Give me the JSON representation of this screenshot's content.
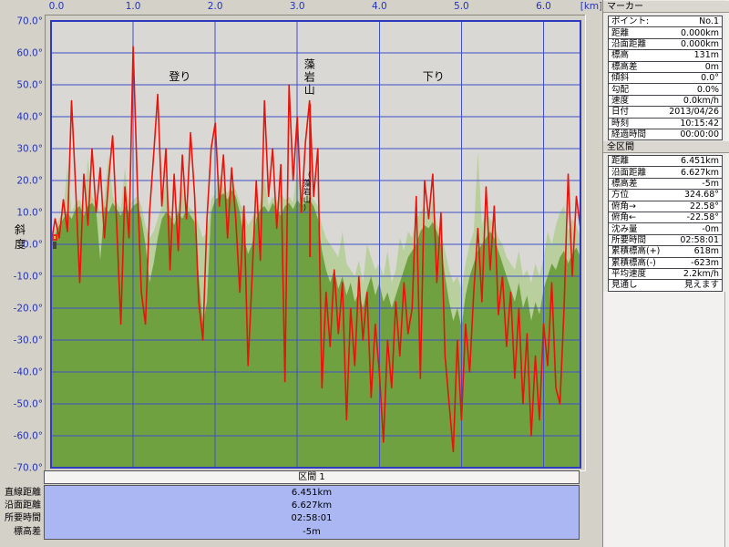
{
  "window": {
    "bg": "#D4D1C9"
  },
  "chart": {
    "plot_bg": "#D9D8D4",
    "grid_color": "#4050C8",
    "border_color": "#2E3ABF",
    "tick_color": "#2433BE",
    "x_ticks": [
      "0.0",
      "1.0",
      "2.0",
      "3.0",
      "4.0",
      "5.0",
      "6.0"
    ],
    "x_tick_km": [
      0,
      1,
      2,
      3,
      4,
      5,
      6
    ],
    "x_unit": "[km]",
    "y_ticks": [
      "70.0°",
      "60.0°",
      "50.0°",
      "40.0°",
      "30.0°",
      "20.0°",
      "10.0°",
      "0.0°",
      "-10.0°",
      "-20.0°",
      "-30.0°",
      "-40.0°",
      "-50.0°",
      "-60.0°",
      "-70.0°"
    ],
    "y_tick_deg": [
      70,
      60,
      50,
      40,
      30,
      20,
      10,
      0,
      -10,
      -20,
      -30,
      -40,
      -50,
      -60,
      -70
    ],
    "y_title": "斜度",
    "annotations": [
      {
        "text": "登り",
        "km": 1.57,
        "deg": 51.5,
        "type": "h"
      },
      {
        "text": "下り",
        "km": 4.66,
        "deg": 51.5,
        "type": "h"
      },
      {
        "text": "藻岩山",
        "km": 3.15,
        "deg": 56.5,
        "type": "v"
      },
      {
        "text": "（藻岩山）",
        "km": 3.12,
        "deg": 22.0,
        "type": "vs"
      }
    ],
    "marker_line": {
      "km": 3.155,
      "deg_from": 44,
      "deg_to": -4,
      "color": "#E8140C"
    },
    "start_marker": {
      "km": 0,
      "deg": 0,
      "colors": [
        "#D93020",
        "#E8C820",
        "#4A453E"
      ]
    }
  },
  "chart_data": {
    "type": "area+line",
    "x_label": "[km]",
    "y_label": "斜度",
    "x_range_km": [
      0,
      6.45
    ],
    "y_range_deg": [
      -70,
      70
    ],
    "x_step_km": 0.05,
    "grid": {
      "x_interval_km": 1,
      "y_interval_deg": 10
    },
    "series": [
      {
        "name": "slope-red-line",
        "color": "#E8140C",
        "values": [
          0,
          8,
          2,
          14,
          4,
          45,
          18,
          -12,
          22,
          6,
          30,
          10,
          24,
          2,
          20,
          34,
          6,
          -25,
          18,
          2,
          62,
          20,
          -15,
          -25,
          10,
          28,
          47,
          12,
          30,
          -8,
          22,
          -2,
          28,
          8,
          35,
          15,
          -18,
          -30,
          8,
          30,
          38,
          12,
          28,
          2,
          24,
          8,
          -15,
          12,
          -38,
          -10,
          20,
          -5,
          45,
          15,
          30,
          5,
          25,
          -43,
          50,
          20,
          40,
          10,
          32,
          45,
          15,
          30,
          -45,
          -15,
          -32,
          -8,
          -28,
          -12,
          -55,
          -20,
          -38,
          -10,
          -30,
          -15,
          -48,
          -25,
          -40,
          -62,
          -30,
          -45,
          -18,
          -35,
          -12,
          -28,
          -20,
          15,
          -42,
          20,
          8,
          22,
          -12,
          10,
          -35,
          -50,
          -65,
          -30,
          -55,
          -25,
          -40,
          -15,
          5,
          -18,
          18,
          -8,
          12,
          -22,
          -10,
          -32,
          -15,
          -42,
          -20,
          -50,
          -28,
          -60,
          -35,
          -55,
          -25,
          -38,
          -12,
          -45,
          -50,
          -20,
          22,
          -10,
          15,
          5
        ]
      },
      {
        "name": "elevation-profile-light-green",
        "color": "#B9D09E",
        "values": [
          2,
          5,
          8,
          10,
          25,
          10,
          13,
          14,
          11,
          27,
          15,
          13,
          10,
          14,
          28,
          15,
          13,
          11,
          24,
          12,
          14,
          15,
          12,
          6,
          2,
          4,
          8,
          12,
          20,
          11,
          8,
          12,
          18,
          13,
          11,
          10,
          6,
          2,
          4,
          14,
          16,
          22,
          18,
          16,
          19,
          17,
          13,
          10,
          6,
          8,
          11,
          13,
          21,
          12,
          15,
          13,
          16,
          14,
          15,
          13,
          24,
          14,
          15,
          16,
          14,
          12,
          6,
          2,
          0,
          -2,
          -4,
          4,
          -6,
          -8,
          -10,
          -5,
          -12,
          0,
          -4,
          -8,
          -6,
          -10,
          -2,
          -12,
          -8,
          2,
          -2,
          4,
          2,
          8,
          10,
          12,
          7,
          14,
          6,
          4,
          -2,
          -8,
          -12,
          -10,
          -14,
          -6,
          0,
          4,
          29,
          6,
          10,
          8,
          6,
          2,
          0,
          -4,
          -6,
          -8,
          -2,
          -10,
          -8,
          -12,
          -6,
          -10,
          -4,
          4,
          0,
          6,
          10,
          12,
          4,
          8,
          6,
          2
        ]
      },
      {
        "name": "elevation-profile-olive-area",
        "color": "#70A140",
        "values": [
          0,
          3,
          6,
          8,
          10,
          8,
          11,
          12,
          9,
          12,
          13,
          11,
          -5,
          12,
          10,
          13,
          11,
          9,
          12,
          10,
          12,
          13,
          8,
          0,
          -12,
          -6,
          2,
          8,
          10,
          9,
          6,
          10,
          8,
          11,
          9,
          7,
          -10,
          -25,
          -18,
          10,
          14,
          15,
          16,
          14,
          17,
          15,
          10,
          2,
          -3,
          0,
          8,
          11,
          12,
          10,
          13,
          11,
          9,
          12,
          13,
          11,
          14,
          12,
          13,
          14,
          12,
          8,
          -2,
          -8,
          -12,
          -8,
          -14,
          -10,
          -16,
          -12,
          -18,
          -15,
          -20,
          -14,
          -10,
          -16,
          -12,
          -18,
          -15,
          -20,
          -16,
          -12,
          -8,
          -4,
          -2,
          0,
          4,
          6,
          5,
          7,
          4,
          0,
          -10,
          -18,
          -24,
          -20,
          -26,
          -16,
          -10,
          -6,
          -2,
          0,
          2,
          4,
          2,
          -2,
          -6,
          -10,
          -14,
          -18,
          -12,
          -20,
          -16,
          -24,
          -18,
          -22,
          -14,
          -10,
          -6,
          -8,
          -4,
          -2,
          -6,
          -3,
          -1,
          -4
        ]
      }
    ]
  },
  "section_panel": {
    "header": "区間 1",
    "body_bg": "#ABB7F3",
    "rows": [
      {
        "label": "直線距離",
        "value": "6.451km"
      },
      {
        "label": "沿面距離",
        "value": "6.627km"
      },
      {
        "label": "所要時間",
        "value": "02:58:01"
      },
      {
        "label": "標高差",
        "value": "-5m"
      }
    ]
  },
  "marker_panel": {
    "title": "マーカー",
    "rows": [
      [
        "ポイント:",
        "No.1"
      ],
      [
        "距離",
        "0.000km"
      ],
      [
        "沿面距離",
        "0.000km"
      ],
      [
        "標高",
        "131m"
      ],
      [
        "標高差",
        "0m"
      ],
      [
        "傾斜",
        "0.0°"
      ],
      [
        "勾配",
        "0.0%"
      ],
      [
        "速度",
        "0.0km/h"
      ],
      [
        "日付",
        "2013/04/26"
      ],
      [
        "時刻",
        "10:15:42"
      ],
      [
        "経過時間",
        "00:00:00"
      ]
    ]
  },
  "total_panel": {
    "title": "全区間",
    "rows": [
      [
        "距離",
        "6.451km"
      ],
      [
        "沿面距離",
        "6.627km"
      ],
      [
        "標高差",
        "-5m"
      ],
      [
        "方位",
        "324.68°"
      ],
      [
        "俯角→",
        "22.58°"
      ],
      [
        "俯角←",
        "-22.58°"
      ],
      [
        "沈み量",
        "-0m"
      ],
      [
        "所要時間",
        "02:58:01"
      ],
      [
        "累積標高(+)",
        "618m"
      ],
      [
        "累積標高(-)",
        "-623m"
      ],
      [
        "平均速度",
        "2.2km/h"
      ],
      [
        "見通し",
        "見えます"
      ]
    ]
  }
}
